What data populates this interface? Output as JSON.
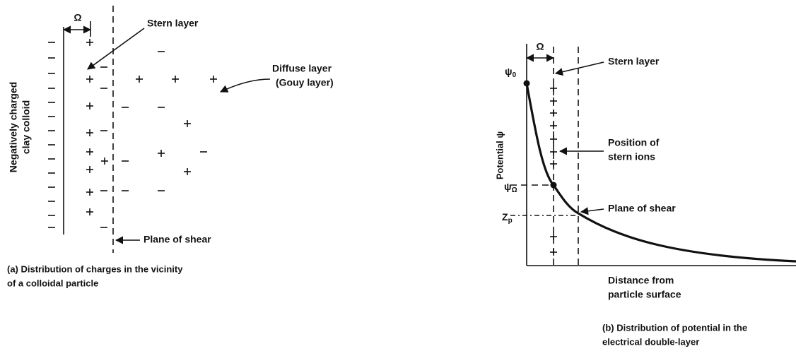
{
  "panel_a": {
    "omega": "Ω",
    "stern_label": "Stern layer",
    "diffuse_label": [
      "Diffuse layer",
      "(Gouy layer)"
    ],
    "particle_label": [
      "Negatively charged",
      "clay colloid"
    ],
    "shear_label": "Plane of shear",
    "caption": [
      "(a) Distribution of charges in the vicinity",
      "of a colloidal particle"
    ]
  },
  "panel_b": {
    "omega": "Ω",
    "stern_label": "Stern layer",
    "psi_0": {
      "symbol": "ψ",
      "sub": "0"
    },
    "potential_label": "Potential ψ",
    "psi_omega": {
      "symbol": "ψ",
      "sub": "Ω"
    },
    "z_p": {
      "symbol": "Z",
      "sub": "p"
    },
    "stern_ions_label": [
      "Position of",
      "stern ions"
    ],
    "shear_label": "Plane of shear",
    "distance_label": [
      "Distance from",
      "particle surface"
    ],
    "caption": [
      "(b) Distribution of potential in the",
      "electrical double-layer"
    ]
  }
}
